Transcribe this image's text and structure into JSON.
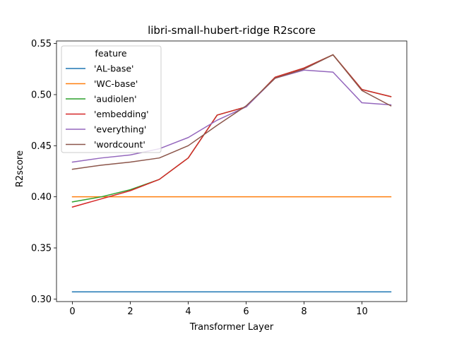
{
  "chart_data": {
    "type": "line",
    "title": "libri-small-hubert-ridge R2score",
    "xlabel": "Transformer Layer",
    "ylabel": "R2score",
    "xlim": [
      -0.55,
      11.55
    ],
    "ylim": [
      0.2975,
      0.5525
    ],
    "xticks": [
      0,
      2,
      4,
      6,
      8,
      10
    ],
    "xtick_labels": [
      "0",
      "2",
      "4",
      "6",
      "8",
      "10"
    ],
    "yticks": [
      0.3,
      0.35,
      0.4,
      0.45,
      0.5,
      0.55
    ],
    "ytick_labels": [
      "0.30",
      "0.35",
      "0.40",
      "0.45",
      "0.50",
      "0.55"
    ],
    "grid": false,
    "legend": {
      "title": "feature",
      "position": "top-left"
    },
    "x": [
      0,
      1,
      2,
      3,
      4,
      5,
      6,
      7,
      8,
      9,
      10,
      11
    ],
    "series": [
      {
        "name": "'AL-base'",
        "color": "#1f77b4",
        "values": [
          0.307,
          0.307,
          0.307,
          0.307,
          0.307,
          0.307,
          0.307,
          0.307,
          0.307,
          0.307,
          0.307,
          0.307
        ]
      },
      {
        "name": "'WC-base'",
        "color": "#ff7f0e",
        "values": [
          0.4,
          0.4,
          0.4,
          0.4,
          0.4,
          0.4,
          0.4,
          0.4,
          0.4,
          0.4,
          0.4,
          0.4
        ]
      },
      {
        "name": "'audiolen'",
        "color": "#2ca02c",
        "values": [
          0.395,
          0.4,
          0.407,
          0.417,
          0.438,
          0.48,
          0.488,
          0.517,
          0.526,
          0.539,
          0.505,
          0.498
        ]
      },
      {
        "name": "'embedding'",
        "color": "#d62728",
        "values": [
          0.39,
          0.398,
          0.406,
          0.417,
          0.438,
          0.48,
          0.488,
          0.517,
          0.526,
          0.539,
          0.505,
          0.498
        ]
      },
      {
        "name": "'everything'",
        "color": "#9467bd",
        "values": [
          0.434,
          0.438,
          0.441,
          0.447,
          0.458,
          0.475,
          0.488,
          0.516,
          0.524,
          0.522,
          0.492,
          0.49
        ]
      },
      {
        "name": "'wordcount'",
        "color": "#8c564b",
        "values": [
          0.427,
          0.431,
          0.434,
          0.438,
          0.45,
          0.47,
          0.489,
          0.516,
          0.525,
          0.539,
          0.504,
          0.489
        ]
      }
    ]
  }
}
